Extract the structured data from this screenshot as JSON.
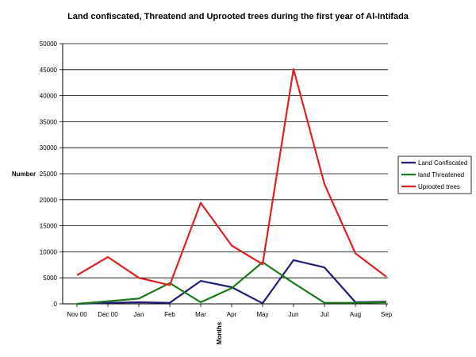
{
  "chart_data": {
    "type": "line",
    "title": "Land confiscated, Threatend and Uprooted trees during the first year of Al-Intifada",
    "xlabel": "Months",
    "ylabel": "Number",
    "categories": [
      "Nov 00",
      "Dec 00",
      "Jan",
      "Feb",
      "Mar",
      "Apr",
      "May",
      "Jun",
      "Jul",
      "Aug",
      "Sep"
    ],
    "ylim": [
      0,
      50000
    ],
    "yticks": [
      0,
      5000,
      10000,
      15000,
      20000,
      25000,
      30000,
      35000,
      40000,
      45000,
      50000
    ],
    "grid": true,
    "legend_position": "right",
    "series": [
      {
        "name": "Land Confiscated",
        "color": "#1f1f7a",
        "values": [
          0,
          200,
          300,
          200,
          4400,
          3200,
          100,
          8400,
          7000,
          300,
          400
        ]
      },
      {
        "name": "land Threatened",
        "color": "#1a7a1a",
        "values": [
          0,
          500,
          1000,
          4000,
          300,
          3000,
          8000,
          4000,
          200,
          200,
          300
        ]
      },
      {
        "name": "Uprooted trees",
        "color": "#e02020",
        "values": [
          5500,
          9000,
          5000,
          3600,
          19400,
          11200,
          7600,
          45100,
          23000,
          9700,
          5200
        ]
      }
    ]
  }
}
